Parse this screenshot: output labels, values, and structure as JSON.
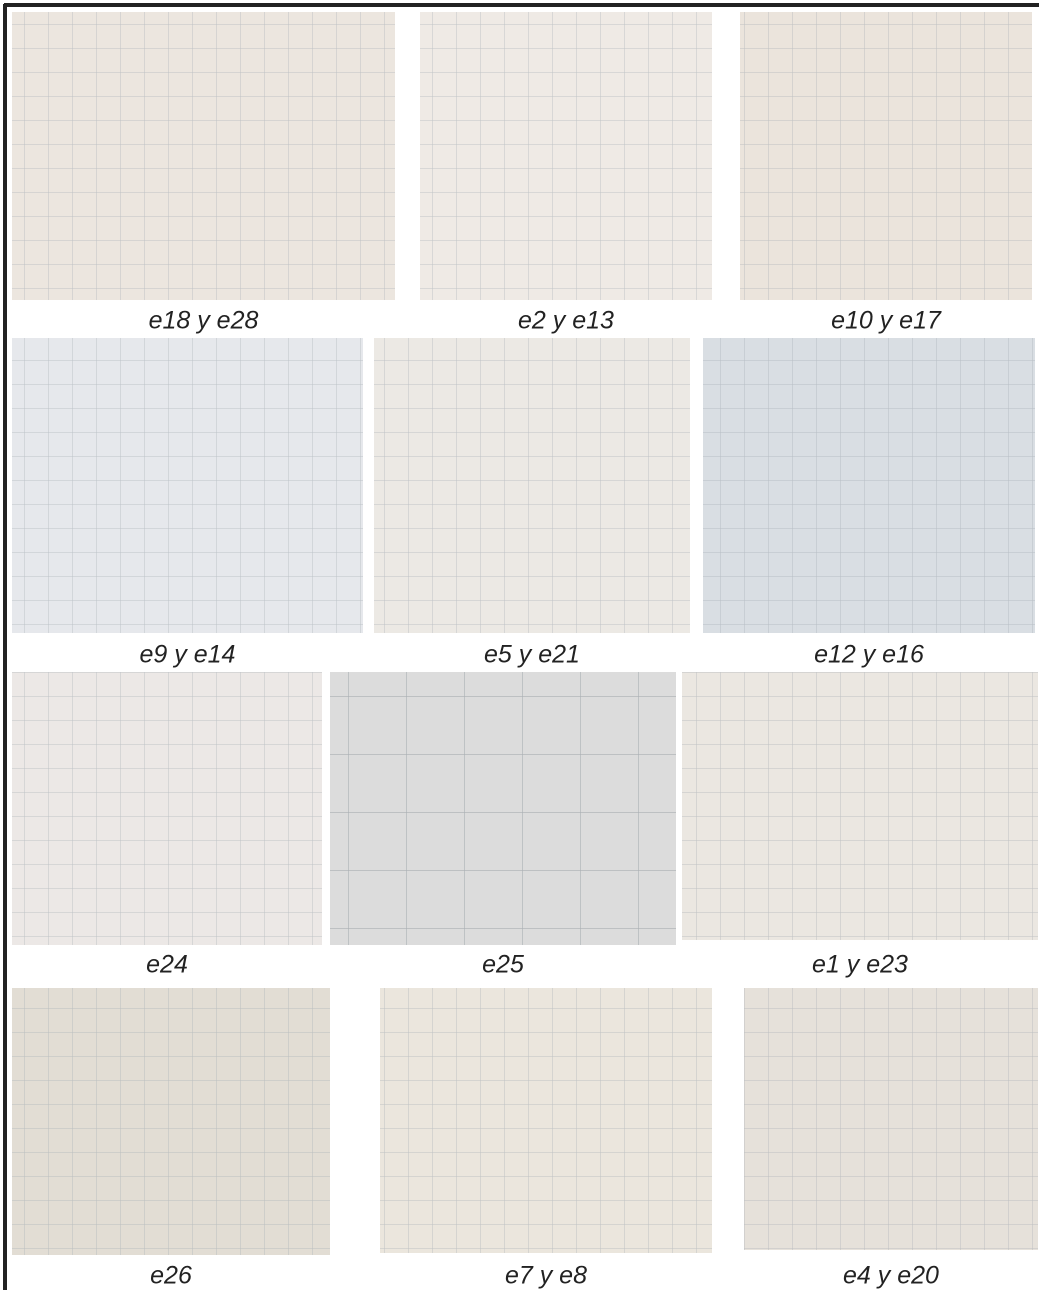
{
  "panels": [
    {
      "caption": "e18 y e28"
    },
    {
      "caption": "e2 y e13"
    },
    {
      "caption": "e10 y e17"
    },
    {
      "caption": "e9 y e14"
    },
    {
      "caption": "e5 y e21"
    },
    {
      "caption": "e12 y e16"
    },
    {
      "caption": "e24"
    },
    {
      "caption": "e25"
    },
    {
      "caption": "e1 y e23"
    },
    {
      "caption": "e26"
    },
    {
      "caption": "e7 y e8"
    },
    {
      "caption": "e4 y e20"
    }
  ]
}
